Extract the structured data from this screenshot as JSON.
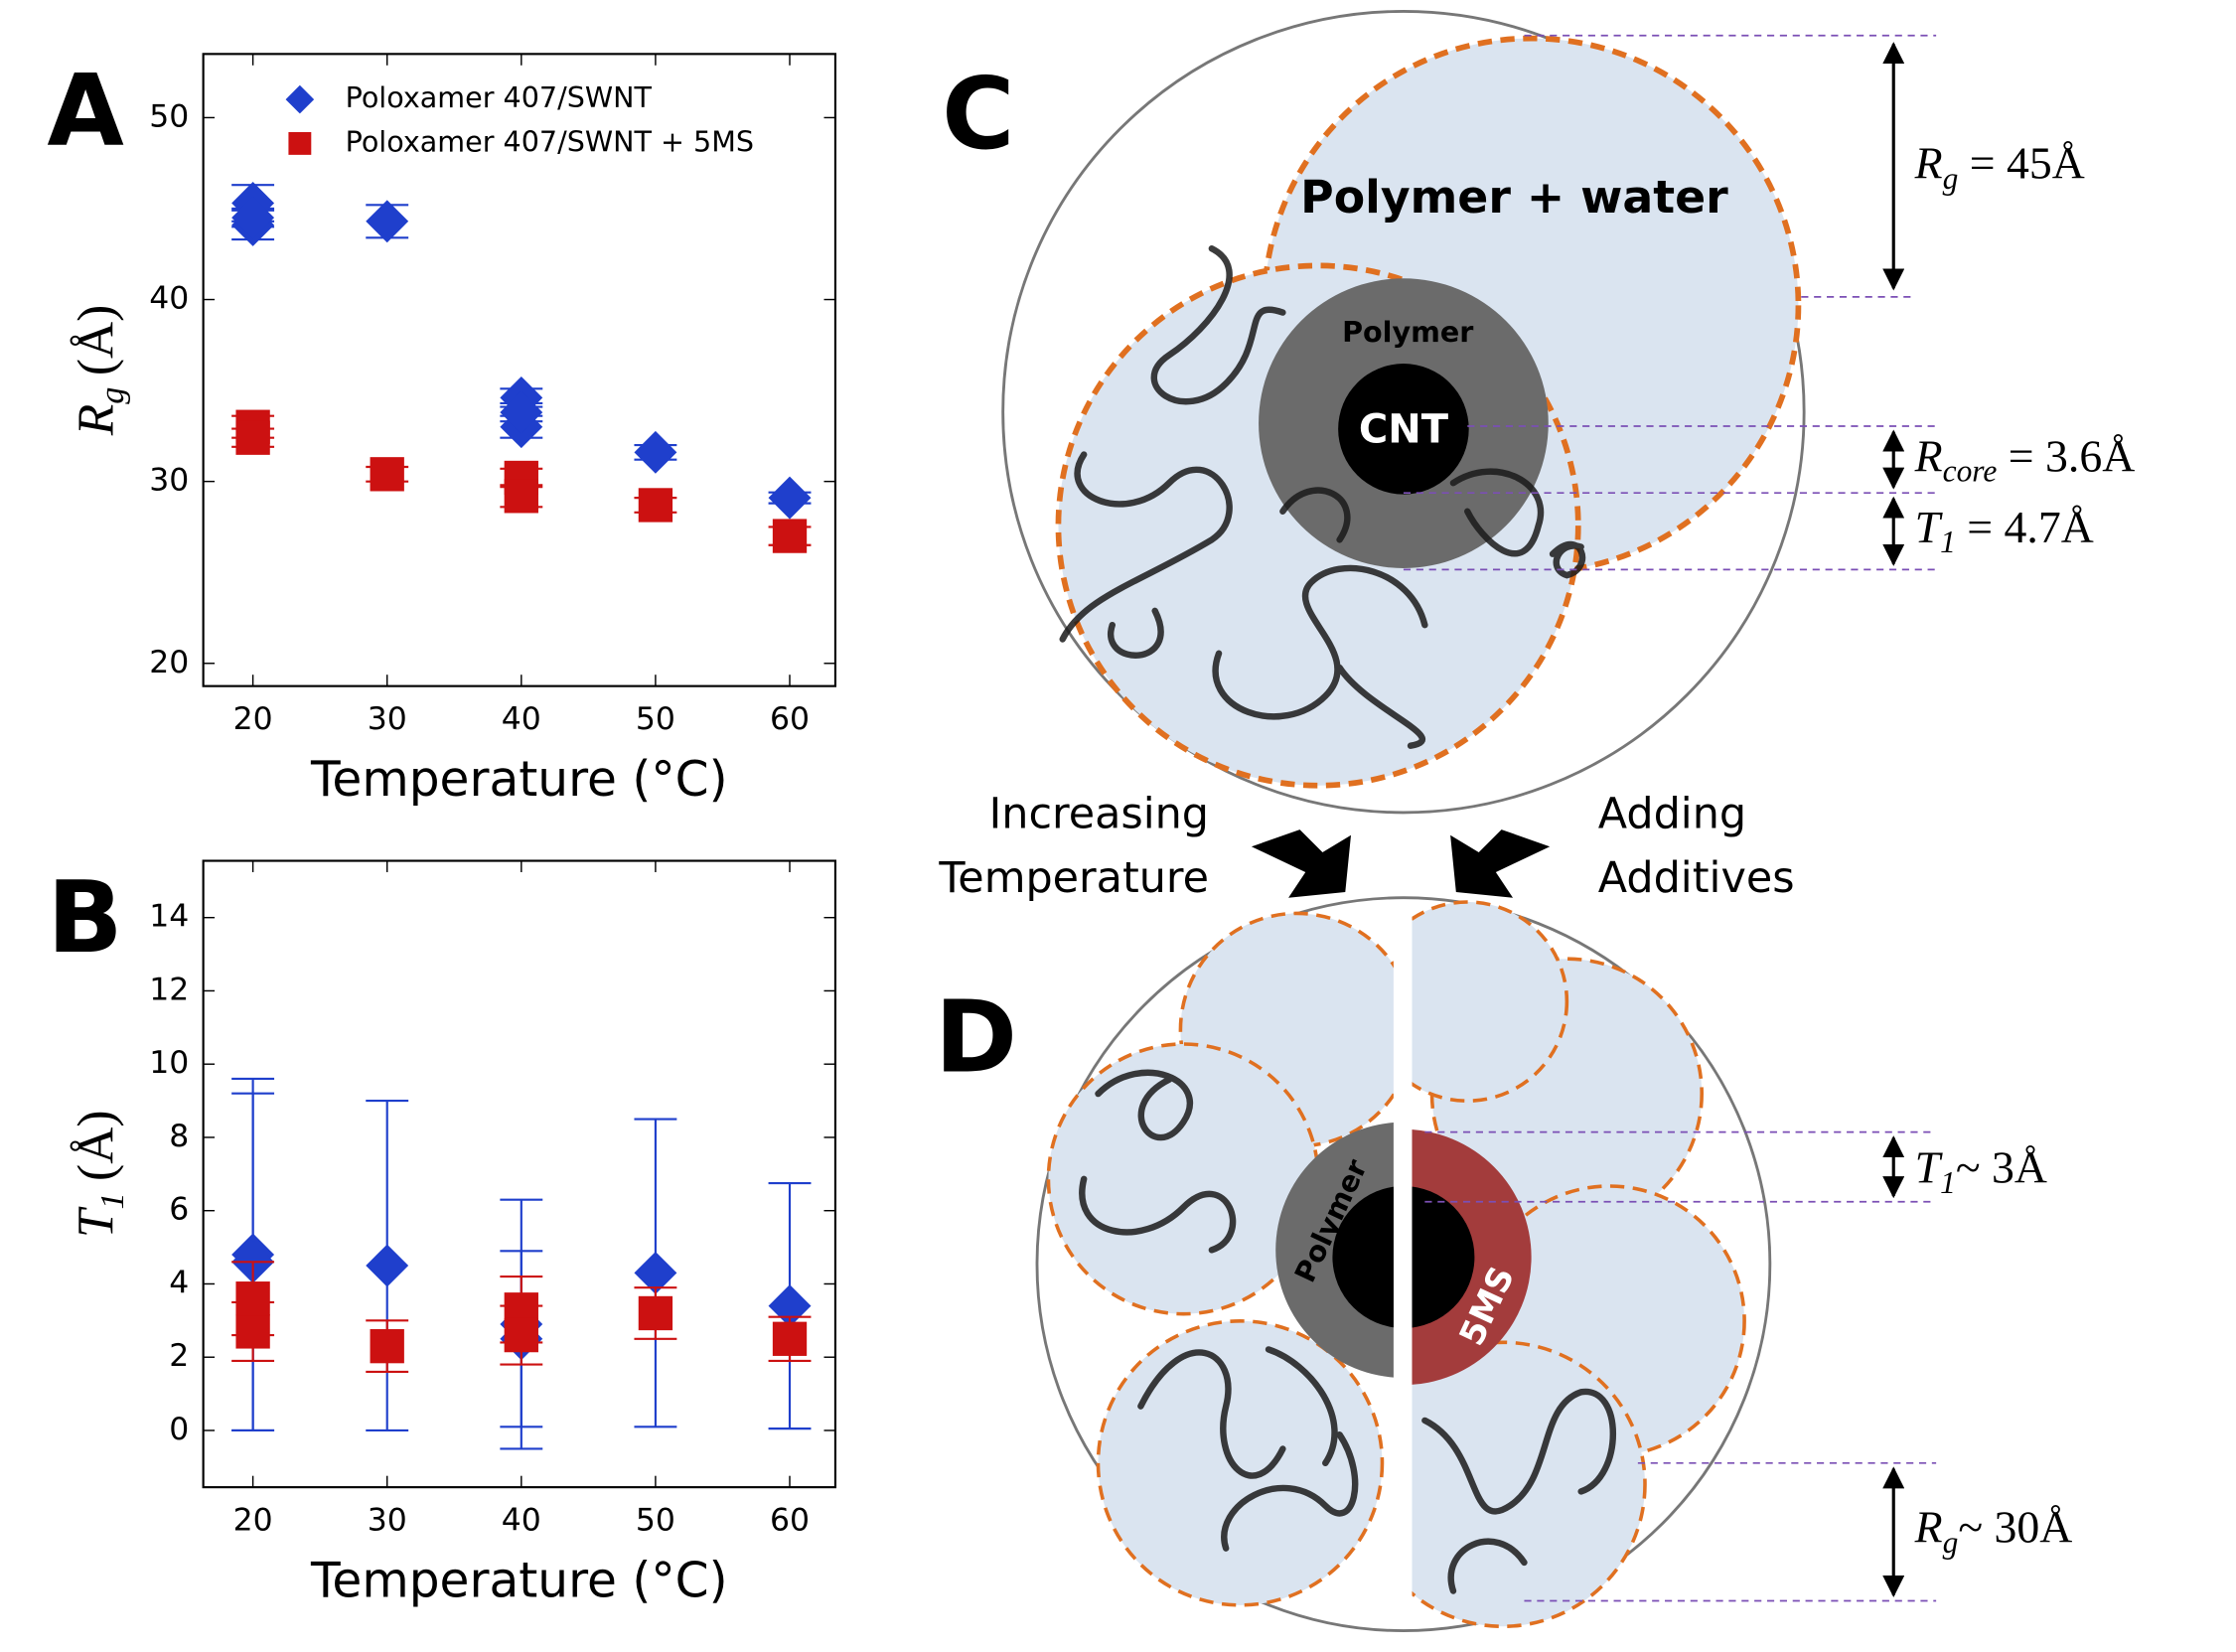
{
  "chart_data": [
    {
      "type": "scatter",
      "panel_label": "A",
      "xlabel": "Temperature (°C)",
      "ylabel": {
        "main": "R",
        "sub": "g",
        "unit": "(Å)"
      },
      "xlim": [
        16.3,
        63.4
      ],
      "xticks": [
        20,
        30,
        40,
        50,
        60
      ],
      "ylim": [
        18.75,
        53.5
      ],
      "yticks": [
        20,
        30,
        40,
        50
      ],
      "series": [
        {
          "name": "Poloxamer 407/SWNT",
          "color": "#1f3fcc",
          "marker": "diamond",
          "x": [
            20,
            20,
            20,
            30,
            40,
            40,
            40,
            50,
            60
          ],
          "values": [
            45.3,
            44.1,
            44.5,
            44.3,
            34.6,
            33.0,
            33.8,
            31.6,
            29.1
          ],
          "errors": [
            1.0,
            0.8,
            0.5,
            0.9,
            0.5,
            0.6,
            0.5,
            0.4,
            0.3
          ]
        },
        {
          "name": "Poloxamer 407/SWNT + 5MS",
          "color": "#cc1111",
          "marker": "square",
          "x": [
            20,
            20,
            30,
            40,
            40,
            50,
            60
          ],
          "values": [
            33.0,
            32.4,
            30.4,
            30.2,
            29.2,
            28.7,
            27.0
          ],
          "errors": [
            0.6,
            0.5,
            0.4,
            0.5,
            0.6,
            0.4,
            0.5
          ]
        }
      ]
    },
    {
      "type": "scatter",
      "panel_label": "B",
      "xlabel": "Temperature (°C)",
      "ylabel": {
        "main": "T",
        "sub": "1",
        "unit": "(Å)"
      },
      "xlim": [
        16.3,
        63.4
      ],
      "xticks": [
        20,
        30,
        40,
        50,
        60
      ],
      "ylim": [
        -1.55,
        15.55
      ],
      "yticks": [
        0,
        2,
        4,
        6,
        8,
        10,
        12,
        14
      ],
      "series": [
        {
          "name": "Poloxamer 407/SWNT",
          "color": "#1f3fcc",
          "marker": "diamond",
          "x": [
            20,
            20,
            30,
            40,
            40,
            50,
            60
          ],
          "values": [
            4.8,
            4.6,
            4.5,
            2.5,
            2.9,
            4.3,
            3.4
          ],
          "errors": [
            4.8,
            4.6,
            4.5,
            2.4,
            3.4,
            4.2,
            3.35
          ]
        },
        {
          "name": "Poloxamer 407/SWNT + 5MS",
          "color": "#cc1111",
          "marker": "square",
          "x": [
            20,
            20,
            30,
            40,
            40,
            50,
            60
          ],
          "values": [
            2.7,
            3.6,
            2.3,
            3.3,
            2.6,
            3.2,
            2.5
          ],
          "errors": [
            0.8,
            1.0,
            0.7,
            0.9,
            0.8,
            0.7,
            0.6
          ]
        }
      ]
    }
  ],
  "diagram": {
    "c": {
      "label": "C",
      "region": "Polymer + water",
      "shell": "Polymer",
      "core": "CNT",
      "rg": {
        "main": "R",
        "sub": "g",
        "value": " = 45Å"
      },
      "rcore": {
        "main": "R",
        "sub": "core",
        "value": " = 3.6Å"
      },
      "t1": {
        "main": "T",
        "sub": "1",
        "value": " = 4.7Å"
      }
    },
    "transition": {
      "left": [
        "Increasing",
        "Temperature"
      ],
      "right": [
        "Adding",
        "Additives"
      ]
    },
    "d": {
      "label": "D",
      "shell": "Polymer",
      "additive": "5MS",
      "t1": {
        "main": "T",
        "sub": "1",
        "value": "~ 3Å"
      },
      "rg": {
        "main": "R",
        "sub": "g",
        "value": "~ 30Å"
      }
    }
  }
}
